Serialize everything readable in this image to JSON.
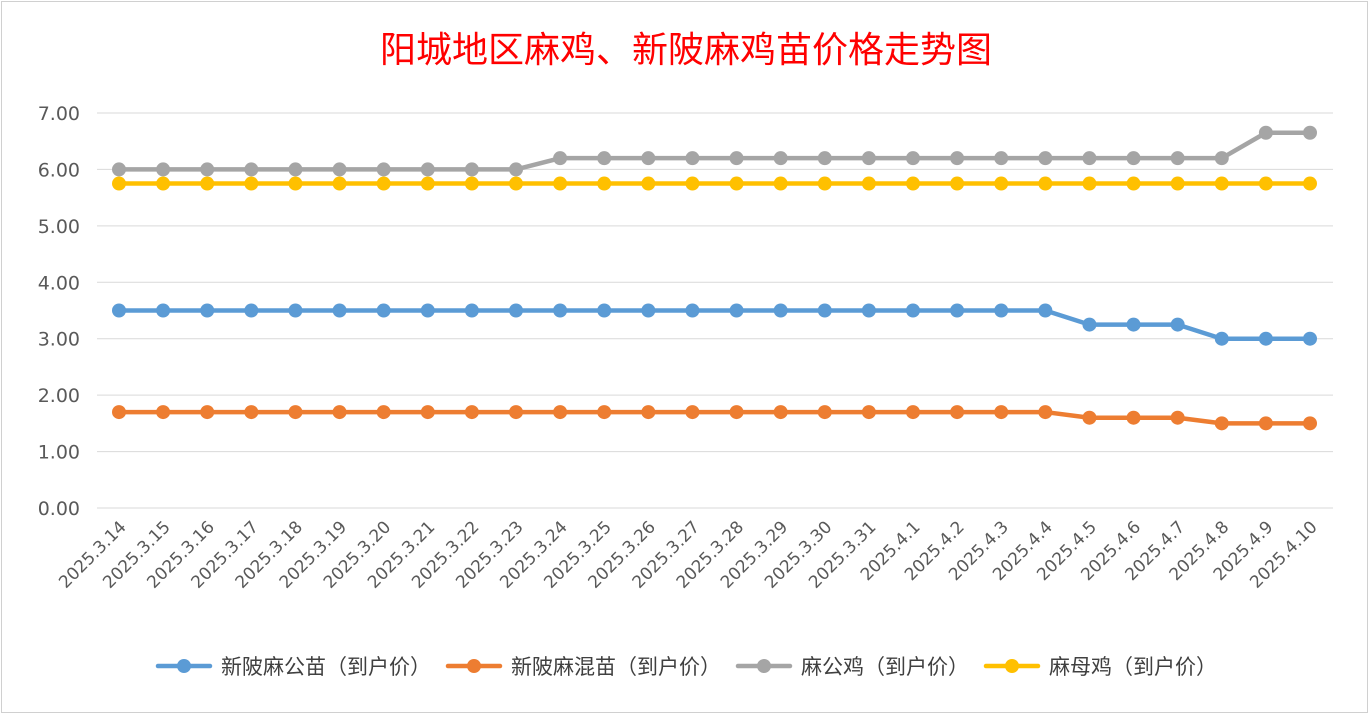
{
  "chart_data": {
    "type": "line",
    "title": "阳城地区麻鸡、新陂麻鸡苗价格走势图",
    "xlabel": "",
    "ylabel": "",
    "ylim": [
      0,
      7
    ],
    "y_ticks": [
      "0.00",
      "1.00",
      "2.00",
      "3.00",
      "4.00",
      "5.00",
      "6.00",
      "7.00"
    ],
    "grid": true,
    "legend_position": "bottom",
    "categories": [
      "2025.3.14",
      "2025.3.15",
      "2025.3.16",
      "2025.3.17",
      "2025.3.18",
      "2025.3.19",
      "2025.3.20",
      "2025.3.21",
      "2025.3.22",
      "2025.3.23",
      "2025.3.24",
      "2025.3.25",
      "2025.3.26",
      "2025.3.27",
      "2025.3.28",
      "2025.3.29",
      "2025.3.30",
      "2025.3.31",
      "2025.4.1",
      "2025.4.2",
      "2025.4.3",
      "2025.4.4",
      "2025.4.5",
      "2025.4.6",
      "2025.4.7",
      "2025.4.8",
      "2025.4.9",
      "2025.4.10"
    ],
    "series": [
      {
        "name": "新陂麻公苗（到户价）",
        "color": "#5b9bd5",
        "values": [
          3.5,
          3.5,
          3.5,
          3.5,
          3.5,
          3.5,
          3.5,
          3.5,
          3.5,
          3.5,
          3.5,
          3.5,
          3.5,
          3.5,
          3.5,
          3.5,
          3.5,
          3.5,
          3.5,
          3.5,
          3.5,
          3.5,
          3.25,
          3.25,
          3.25,
          3.0,
          3.0,
          3.0
        ]
      },
      {
        "name": "新陂麻混苗（到户价）",
        "color": "#ed7d31",
        "values": [
          1.7,
          1.7,
          1.7,
          1.7,
          1.7,
          1.7,
          1.7,
          1.7,
          1.7,
          1.7,
          1.7,
          1.7,
          1.7,
          1.7,
          1.7,
          1.7,
          1.7,
          1.7,
          1.7,
          1.7,
          1.7,
          1.7,
          1.6,
          1.6,
          1.6,
          1.5,
          1.5,
          1.5
        ]
      },
      {
        "name": "麻公鸡（到户价）",
        "color": "#a5a5a5",
        "values": [
          6.0,
          6.0,
          6.0,
          6.0,
          6.0,
          6.0,
          6.0,
          6.0,
          6.0,
          6.0,
          6.2,
          6.2,
          6.2,
          6.2,
          6.2,
          6.2,
          6.2,
          6.2,
          6.2,
          6.2,
          6.2,
          6.2,
          6.2,
          6.2,
          6.2,
          6.2,
          6.65,
          6.65
        ]
      },
      {
        "name": "麻母鸡（到户价）",
        "color": "#ffc000",
        "values": [
          5.75,
          5.75,
          5.75,
          5.75,
          5.75,
          5.75,
          5.75,
          5.75,
          5.75,
          5.75,
          5.75,
          5.75,
          5.75,
          5.75,
          5.75,
          5.75,
          5.75,
          5.75,
          5.75,
          5.75,
          5.75,
          5.75,
          5.75,
          5.75,
          5.75,
          5.75,
          5.75,
          5.75
        ]
      }
    ]
  }
}
